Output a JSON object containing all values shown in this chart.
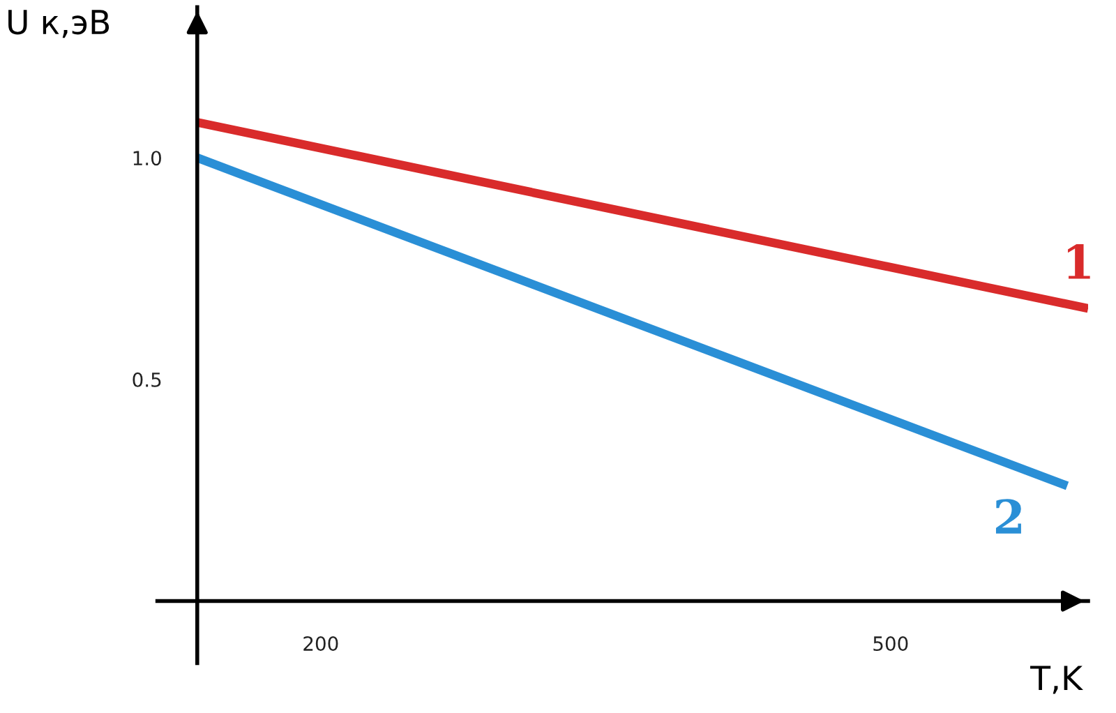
{
  "chart_data": {
    "type": "line",
    "xlabel": "T,K",
    "ylabel": "U к,эВ",
    "xlim": [
      114,
      604
    ],
    "ylim": [
      -0.14,
      1.34
    ],
    "xticks": [
      200,
      500
    ],
    "yticks": [
      {
        "value": 0.5,
        "label": "0.5"
      },
      {
        "value": 1.0,
        "label": "1.0"
      }
    ],
    "grid": false,
    "legend": false,
    "marker": "none",
    "line_style": "solid",
    "series": [
      {
        "name": "1",
        "color": "#d92b2b",
        "x": [
          135,
          604
        ],
        "values": [
          1.08,
          0.66
        ]
      },
      {
        "name": "2",
        "color": "#2a8fd6",
        "x": [
          135,
          593
        ],
        "values": [
          1.0,
          0.26
        ]
      }
    ]
  }
}
